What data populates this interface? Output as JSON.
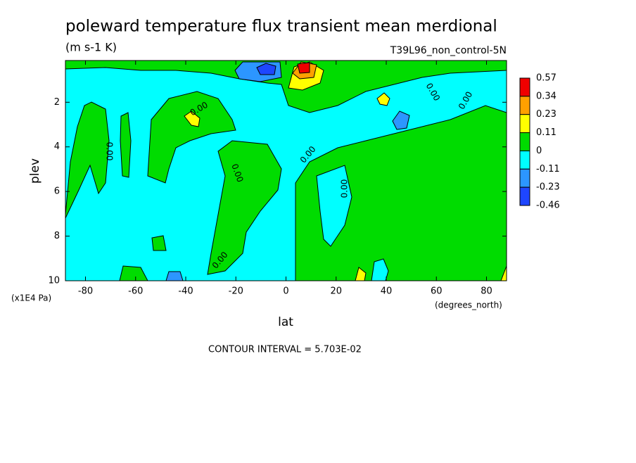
{
  "chart_data": {
    "type": "contour",
    "title": "poleward temperature flux transient mean merdional",
    "subtitle": "(m s-1 K)",
    "run_label": "T39L96_non_control-5N",
    "x_label": "lat",
    "x_unit": "(degrees_north)",
    "y_label": "plev",
    "y_unit": "(x1E4 Pa)",
    "xlim": [
      -88,
      88
    ],
    "xticks": [
      -80,
      -60,
      -40,
      -20,
      0,
      20,
      40,
      60,
      80
    ],
    "ylim": [
      0.13,
      10
    ],
    "y_reversed": true,
    "yticks": [
      2,
      4,
      6,
      8,
      10
    ],
    "contour_label": "0.00",
    "annotation": "CONTOUR INTERVAL = 5.703E-02",
    "colorbar": {
      "levels": [
        0.57,
        0.34,
        0.23,
        0.11,
        0,
        -0.11,
        -0.23,
        -0.46
      ],
      "colors": [
        "#f00000",
        "#ffa000",
        "#ffff00",
        "#00dc00",
        "#00ffff",
        "#2c96ff",
        "#1e46ff"
      ]
    }
  }
}
